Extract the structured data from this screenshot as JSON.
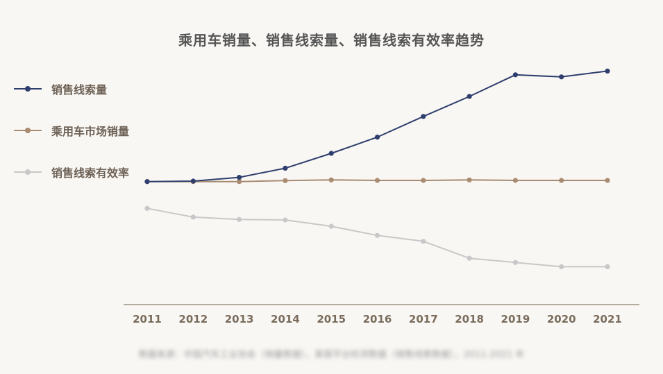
{
  "chart_data": {
    "type": "line",
    "title": "乘用车销量、销售线索量、销售线索有效率趋势",
    "x": [
      "2011",
      "2012",
      "2013",
      "2014",
      "2015",
      "2016",
      "2017",
      "2018",
      "2019",
      "2020",
      "2021"
    ],
    "xlabel": "",
    "ylabel": "",
    "y_axis_visible": false,
    "grid": false,
    "legend_position": "left",
    "ylim": [
      0,
      100
    ],
    "series": [
      {
        "name": "销售线索量",
        "color": "#2e3f6e",
        "values": [
          52.3,
          52.5,
          54.1,
          58.0,
          64.3,
          71.2,
          80.0,
          88.5,
          97.7,
          96.8,
          99.3
        ]
      },
      {
        "name": "乘用车市场销量",
        "color": "#a88b70",
        "values": [
          52.3,
          52.3,
          52.3,
          52.7,
          53.0,
          52.8,
          52.8,
          53.0,
          52.8,
          52.8,
          52.8
        ]
      },
      {
        "name": "销售线索有效率",
        "color": "#c8c8c8",
        "values": [
          40.9,
          37.2,
          36.2,
          36.0,
          33.3,
          29.4,
          26.9,
          19.7,
          17.9,
          16.1,
          16.1
        ]
      }
    ],
    "source_note": "数据来源：中国汽车工业协会（销量数据），某报平台检测数据（销售线索数据），2011-2021 年"
  }
}
